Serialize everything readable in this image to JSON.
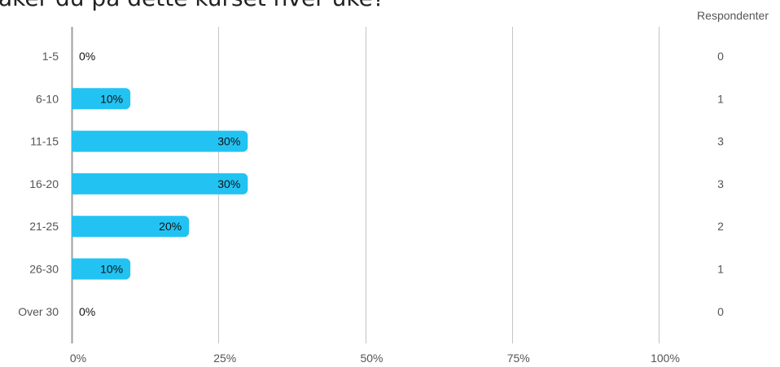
{
  "chart_data": {
    "type": "bar",
    "orientation": "horizontal",
    "title": "aker du på dette kurset hver uke?",
    "categories": [
      "1-5",
      "6-10",
      "11-15",
      "16-20",
      "21-25",
      "26-30",
      "Over 30"
    ],
    "values": [
      0,
      10,
      30,
      30,
      20,
      10,
      0
    ],
    "value_labels": [
      "0%",
      "10%",
      "30%",
      "30%",
      "20%",
      "10%",
      "0%"
    ],
    "respondents_header": "Respondenter",
    "respondents": [
      "0",
      "1",
      "3",
      "3",
      "2",
      "1",
      "0"
    ],
    "xlim": [
      0,
      100
    ],
    "x_ticks": [
      0,
      25,
      50,
      75,
      100
    ],
    "x_tick_labels": [
      "0%",
      "25%",
      "50%",
      "75%",
      "100%"
    ],
    "grid": true,
    "bar_color": "#22c3f3",
    "grid_color": "#c4c4c4",
    "axis_color": "#9e9e9e"
  }
}
